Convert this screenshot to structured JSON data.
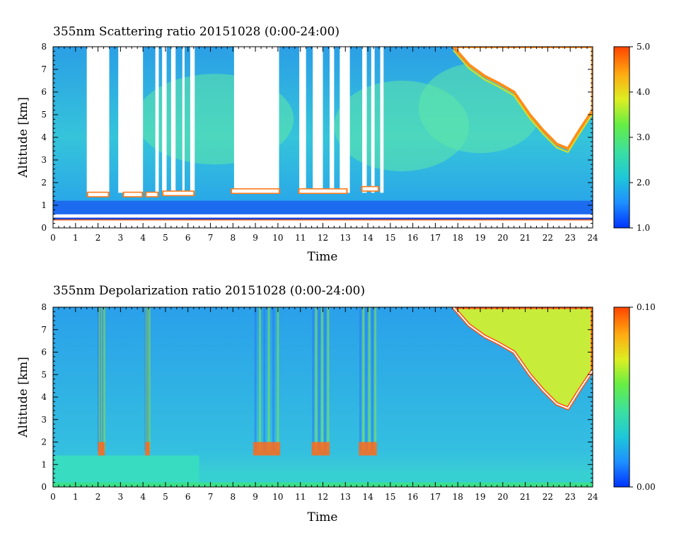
{
  "chart_data": [
    {
      "type": "heatmap",
      "title": "355nm Scattering ratio  20151028 (0:00-24:00)",
      "xlabel": "Time",
      "ylabel": "Altitude [km]",
      "xlim": [
        0,
        24
      ],
      "ylim": [
        0,
        8
      ],
      "x_ticks": [
        "0",
        "1",
        "2",
        "3",
        "4",
        "5",
        "6",
        "7",
        "8",
        "9",
        "10",
        "11",
        "12",
        "13",
        "14",
        "15",
        "16",
        "17",
        "18",
        "19",
        "20",
        "21",
        "22",
        "23",
        "24"
      ],
      "y_ticks": [
        "0",
        "1",
        "2",
        "3",
        "4",
        "5",
        "6",
        "7",
        "8"
      ],
      "colorbar": {
        "range": [
          1.0,
          5.0
        ],
        "ticks": [
          "1.0",
          "2.0",
          "3.0",
          "4.0",
          "5.0"
        ],
        "colors": [
          "#0033ff",
          "#1e90ff",
          "#1ec8d8",
          "#3be0a0",
          "#66ee44",
          "#ddee22",
          "#ffaa11",
          "#ff4400"
        ]
      },
      "clear_gaps": [
        [
          1.5,
          2.5
        ],
        [
          2.9,
          4.0
        ],
        [
          4.55,
          4.7
        ],
        [
          4.85,
          5.05
        ],
        [
          5.25,
          5.45
        ],
        [
          5.75,
          5.85
        ],
        [
          6.1,
          6.3
        ],
        [
          8.05,
          10.05
        ],
        [
          10.95,
          11.25
        ],
        [
          11.55,
          12.0
        ],
        [
          12.3,
          12.5
        ],
        [
          12.75,
          13.2
        ],
        [
          13.75,
          13.95
        ],
        [
          14.15,
          14.3
        ],
        [
          14.55,
          14.7
        ]
      ],
      "cloud_bases": [
        [
          1.5,
          2.5,
          1.4
        ],
        [
          3.1,
          4.0,
          1.4
        ],
        [
          4.1,
          4.7,
          1.4
        ],
        [
          4.85,
          6.3,
          1.45
        ],
        [
          7.9,
          10.1,
          1.55
        ],
        [
          10.9,
          13.1,
          1.55
        ],
        [
          13.7,
          14.5,
          1.65
        ]
      ],
      "cirrus_base": [
        [
          17.8,
          8.0
        ],
        [
          18.5,
          7.2
        ],
        [
          19.2,
          6.7
        ],
        [
          19.8,
          6.4
        ],
        [
          20.5,
          6.0
        ],
        [
          21.2,
          5.0
        ],
        [
          21.8,
          4.3
        ],
        [
          22.4,
          3.7
        ],
        [
          22.9,
          3.5
        ],
        [
          23.4,
          4.3
        ],
        [
          24,
          5.2
        ]
      ]
    },
    {
      "type": "heatmap",
      "title": "355nm Depolarization ratio  20151028 (0:00-24:00)",
      "xlabel": "Time",
      "ylabel": "Altitude [km]",
      "xlim": [
        0,
        24
      ],
      "ylim": [
        0,
        8
      ],
      "x_ticks": [
        "0",
        "1",
        "2",
        "3",
        "4",
        "5",
        "6",
        "7",
        "8",
        "9",
        "10",
        "11",
        "12",
        "13",
        "14",
        "15",
        "16",
        "17",
        "18",
        "19",
        "20",
        "21",
        "22",
        "23",
        "24"
      ],
      "y_ticks": [
        "0",
        "1",
        "2",
        "3",
        "4",
        "5",
        "6",
        "7",
        "8"
      ],
      "colorbar": {
        "range": [
          0.0,
          0.1
        ],
        "ticks": [
          "0.00",
          "0.10"
        ],
        "colors": [
          "#0033ff",
          "#1e90ff",
          "#1ec8d8",
          "#3be0a0",
          "#66ee44",
          "#ddee22",
          "#ffaa11",
          "#ff4400"
        ]
      },
      "streaks": [
        [
          2.0,
          2.3
        ],
        [
          4.1,
          4.3
        ],
        [
          8.9,
          10.1
        ],
        [
          11.5,
          12.3
        ],
        [
          13.6,
          14.4
        ]
      ],
      "cirrus_base": [
        [
          17.8,
          8.0
        ],
        [
          18.5,
          7.2
        ],
        [
          19.2,
          6.7
        ],
        [
          19.8,
          6.4
        ],
        [
          20.5,
          6.0
        ],
        [
          21.2,
          5.0
        ],
        [
          21.8,
          4.3
        ],
        [
          22.4,
          3.7
        ],
        [
          22.9,
          3.5
        ],
        [
          23.4,
          4.3
        ],
        [
          24,
          5.2
        ]
      ]
    }
  ]
}
